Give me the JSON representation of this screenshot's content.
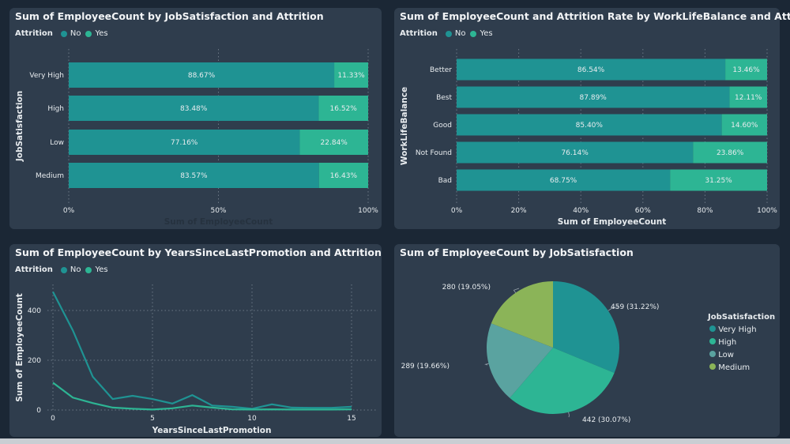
{
  "colors": {
    "no": "#1f9393",
    "yes": "#2db594",
    "very_high": "#1f9393",
    "high": "#2db594",
    "low": "#5aa3a0",
    "medium": "#8bb458"
  },
  "legend": {
    "title": "Attrition",
    "no": "No",
    "yes": "Yes"
  },
  "chart_data": [
    {
      "type": "bar",
      "stacked": "100%",
      "orientation": "horizontal",
      "title": "Sum of EmployeeCount by JobSatisfaction and Attrition",
      "ylabel": "JobSatisfaction",
      "xlabel": "Sum of EmployeeCount",
      "categories": [
        "Very High",
        "High",
        "Low",
        "Medium"
      ],
      "series": [
        {
          "name": "No",
          "values": [
            88.67,
            83.48,
            77.16,
            83.57
          ],
          "labels": [
            "88.67%",
            "83.48%",
            "77.16%",
            "83.57%"
          ]
        },
        {
          "name": "Yes",
          "values": [
            11.33,
            16.52,
            22.84,
            16.43
          ],
          "labels": [
            "11.33%",
            "16.52%",
            "22.84%",
            "16.43%"
          ]
        }
      ],
      "xticks": [
        "0%",
        "50%",
        "100%"
      ],
      "xlim": [
        0,
        100
      ],
      "grid": true,
      "legend": "top-left"
    },
    {
      "type": "bar",
      "stacked": "100%",
      "orientation": "horizontal",
      "title": "Sum of EmployeeCount and Attrition Rate by WorkLifeBalance and Attrition",
      "ylabel": "WorkLifeBalance",
      "xlabel": "Sum of EmployeeCount",
      "categories": [
        "Better",
        "Best",
        "Good",
        "Not Found",
        "Bad"
      ],
      "series": [
        {
          "name": "No",
          "values": [
            86.54,
            87.89,
            85.4,
            76.14,
            68.75
          ],
          "labels": [
            "86.54%",
            "87.89%",
            "85.40%",
            "76.14%",
            "68.75%"
          ]
        },
        {
          "name": "Yes",
          "values": [
            13.46,
            12.11,
            14.6,
            23.86,
            31.25
          ],
          "labels": [
            "13.46%",
            "12.11%",
            "14.60%",
            "23.86%",
            "31.25%"
          ]
        }
      ],
      "xticks": [
        "0%",
        "20%",
        "40%",
        "60%",
        "80%",
        "100%"
      ],
      "xlim": [
        0,
        100
      ],
      "grid": true,
      "legend": "top-left"
    },
    {
      "type": "line",
      "title": "Sum of EmployeeCount by YearsSinceLastPromotion and Attrition",
      "xlabel": "YearsSinceLastPromotion",
      "ylabel": "Sum of EmployeeCount",
      "x": [
        0,
        1,
        2,
        3,
        4,
        5,
        6,
        7,
        8,
        9,
        10,
        11,
        12,
        13,
        14,
        15
      ],
      "series": [
        {
          "name": "No",
          "values": [
            475,
            320,
            134,
            44,
            57,
            44,
            26,
            60,
            18,
            13,
            5,
            23,
            10,
            9,
            9,
            13
          ]
        },
        {
          "name": "Yes",
          "values": [
            110,
            50,
            28,
            10,
            5,
            2,
            7,
            18,
            10,
            3,
            2,
            3,
            2,
            2,
            2,
            3
          ]
        }
      ],
      "xticks": [
        "0",
        "5",
        "10",
        "15"
      ],
      "yticks": [
        "0",
        "200",
        "400"
      ],
      "xlim": [
        0,
        16
      ],
      "ylim": [
        0,
        500
      ],
      "grid": true,
      "legend": "top-left"
    },
    {
      "type": "pie",
      "title": "Sum of EmployeeCount by JobSatisfaction",
      "legend_title": "JobSatisfaction",
      "categories": [
        "Very High",
        "High",
        "Low",
        "Medium"
      ],
      "values": [
        459,
        442,
        289,
        280
      ],
      "labels": [
        "459 (31.22%)",
        "442 (30.07%)",
        "289 (19.66%)",
        "280 (19.05%)"
      ],
      "legend": "right"
    }
  ]
}
